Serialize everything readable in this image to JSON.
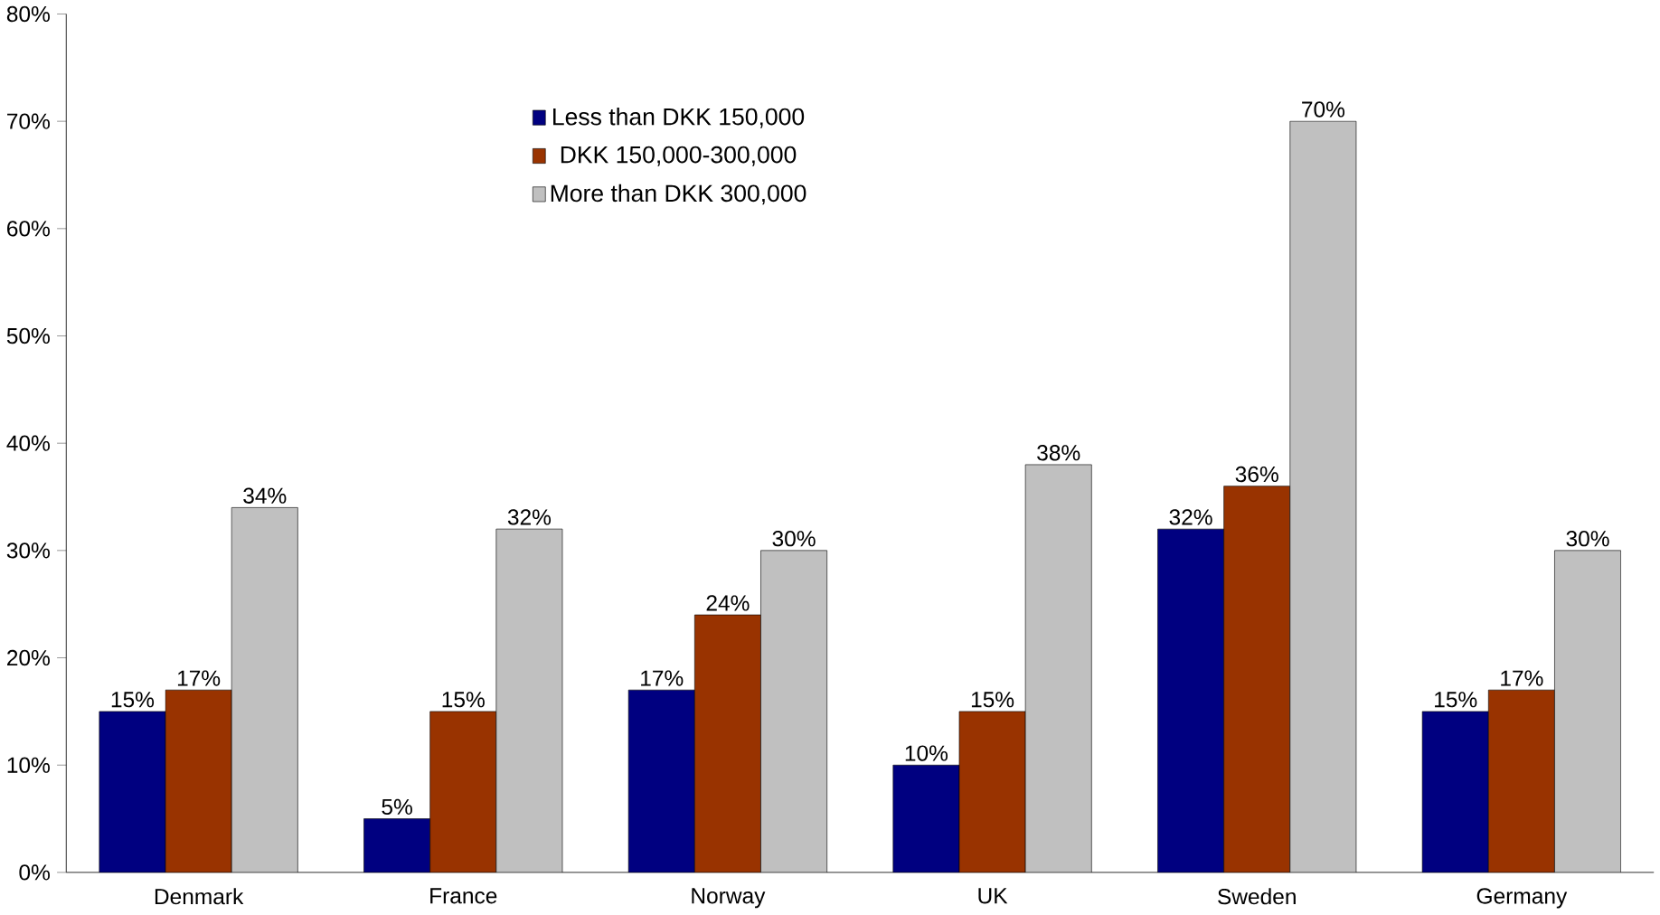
{
  "chart_data": {
    "type": "bar",
    "categories": [
      "Denmark",
      "France",
      "Norway",
      "UK",
      "Sweden",
      "Germany"
    ],
    "series": [
      {
        "name": "Less than DKK 150,000",
        "color": "#000080",
        "values": [
          15,
          5,
          17,
          10,
          32,
          15
        ],
        "value_labels": [
          "15%",
          "5%",
          "17%",
          "10%",
          "32%",
          "15%"
        ]
      },
      {
        "name": "DKK 150,000-300,000",
        "color": "#993300",
        "values": [
          17,
          15,
          24,
          15,
          36,
          17
        ],
        "value_labels": [
          "17%",
          "15%",
          "24%",
          "15%",
          "36%",
          "17%"
        ]
      },
      {
        "name": "More than DKK 300,000",
        "color": "#c0c0c0",
        "values": [
          34,
          32,
          30,
          38,
          70,
          30
        ],
        "value_labels": [
          "34%",
          "32%",
          "30%",
          "38%",
          "70%",
          "30%"
        ]
      }
    ],
    "ylim": [
      0,
      80
    ],
    "yticks": [
      {
        "value": 0,
        "label": "0%"
      },
      {
        "value": 10,
        "label": "10%"
      },
      {
        "value": 20,
        "label": "20%"
      },
      {
        "value": 30,
        "label": "30%"
      },
      {
        "value": 40,
        "label": "40%"
      },
      {
        "value": 50,
        "label": "50%"
      },
      {
        "value": 60,
        "label": "60%"
      },
      {
        "value": 70,
        "label": "70%"
      },
      {
        "value": 80,
        "label": "80%"
      }
    ],
    "grid": false,
    "legend": "top"
  }
}
